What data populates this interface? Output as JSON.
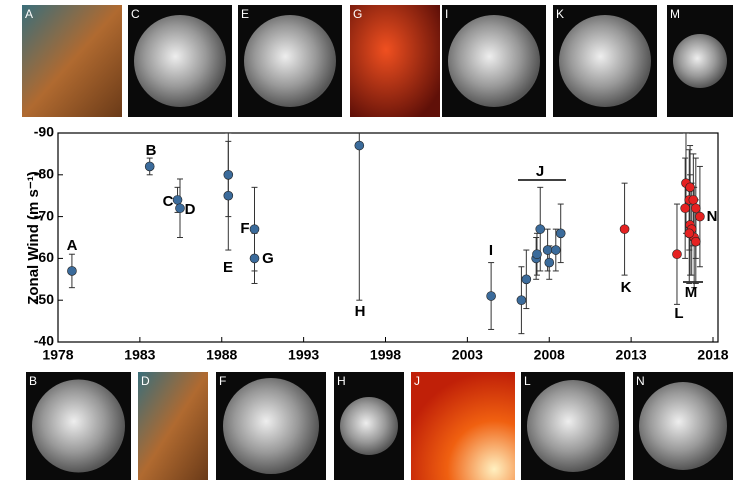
{
  "chart_data": {
    "type": "scatter",
    "ylabel": "Zonal Wind (m s⁻¹)",
    "xlim": [
      1978,
      2018
    ],
    "xticks": [
      1978,
      1983,
      1988,
      1993,
      1998,
      2003,
      2008,
      2013,
      2018
    ],
    "ylim": [
      -40,
      -90
    ],
    "yticks": [
      -90,
      -80,
      -70,
      -60,
      -50,
      -40
    ],
    "series": [
      {
        "color": "#3b6b9b",
        "x": [
          1978.85,
          1983.6,
          1985.3,
          1985.45,
          1988.4,
          1988.4,
          1990.0,
          1990.0,
          1996.4,
          2004.45,
          2006.3,
          2006.6,
          2007.2,
          2007.25,
          2007.45,
          2007.9,
          2008.0,
          2008.4,
          2008.7
        ],
        "values": [
          -57,
          -82,
          -74,
          -72,
          -80,
          -75,
          -67,
          -60,
          -87,
          -51,
          -50,
          -55,
          -60,
          -61,
          -67,
          -62,
          -59,
          -62,
          -66
        ],
        "errors": [
          4,
          2,
          3,
          7,
          10,
          13,
          10,
          6,
          37,
          8,
          8,
          7,
          5,
          5,
          10,
          5,
          4,
          5,
          7
        ]
      },
      {
        "color": "#e52222",
        "x": [
          2012.6,
          2015.8,
          2016.35,
          2016.6,
          2016.55,
          2016.3,
          2016.8,
          2016.95,
          2017.2,
          2016.6,
          2016.7,
          2016.85,
          2016.95,
          2016.55
        ],
        "values": [
          -67,
          -61,
          -78,
          -77,
          -74,
          -72,
          -74,
          -72,
          -70,
          -68,
          -67,
          -65,
          -64,
          -66
        ],
        "errors": [
          11,
          12,
          12,
          10,
          12,
          12,
          11,
          12,
          12,
          12,
          11,
          12,
          10,
          12
        ]
      }
    ],
    "annotations": [
      "A",
      "B",
      "C",
      "D",
      "E",
      "F",
      "G",
      "H",
      "I",
      "J",
      "K",
      "L",
      "M",
      "N"
    ]
  },
  "images": {
    "top": [
      "A",
      "C",
      "E",
      "G",
      "I",
      "K",
      "M"
    ],
    "bottom": [
      "B",
      "D",
      "F",
      "H",
      "J",
      "L",
      "N"
    ]
  }
}
